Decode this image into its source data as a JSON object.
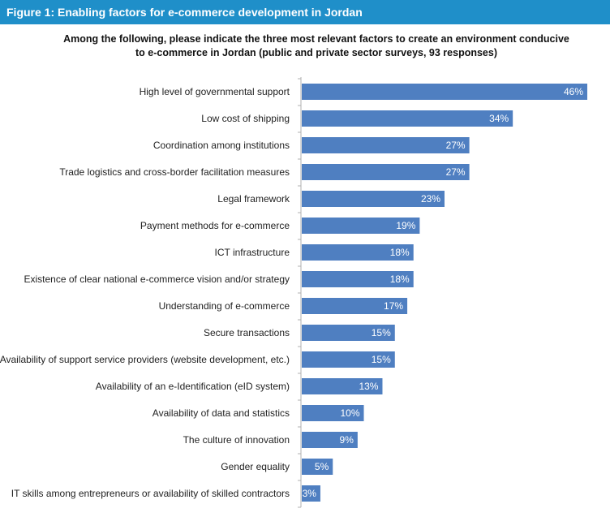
{
  "figure": {
    "header": "Figure 1: Enabling factors for e-commerce development in Jordan",
    "title_line1": "Among the following, please indicate the three most relevant factors to create an environment conducive",
    "title_line2": "to e-commerce in Jordan (public and private sector surveys, 93 responses)"
  },
  "colors": {
    "header_bg": "#1f8fc9",
    "bar": "#4f7fc1",
    "axis": "#b0b0b0"
  },
  "chart_data": {
    "type": "bar",
    "orientation": "horizontal",
    "title": "Among the following, please indicate the three most relevant factors to create an environment conducive to e-commerce in Jordan (public and private sector surveys, 93 responses)",
    "xlim": [
      0,
      46
    ],
    "categories": [
      "High level of governmental support",
      "Low cost of shipping",
      "Coordination among institutions",
      "Trade logistics and cross-border facilitation measures",
      "Legal framework",
      "Payment methods for e-commerce",
      "ICT infrastructure",
      "Existence of clear national e-commerce vision and/or strategy",
      "Understanding of e-commerce",
      "Secure transactions",
      "Availability of support service providers (website development, etc.)",
      "Availability of an e-Identification (eID system)",
      "Availability of data and statistics",
      "The culture of innovation",
      "Gender equality",
      "IT skills among entrepreneurs or availability of skilled contractors"
    ],
    "values": [
      46,
      34,
      27,
      27,
      23,
      19,
      18,
      18,
      17,
      15,
      15,
      13,
      10,
      9,
      5,
      3
    ],
    "value_labels": [
      "46%",
      "34%",
      "27%",
      "27%",
      "23%",
      "19%",
      "18%",
      "18%",
      "17%",
      "15%",
      "15%",
      "13%",
      "10%",
      "9%",
      "5%",
      "3%"
    ]
  }
}
